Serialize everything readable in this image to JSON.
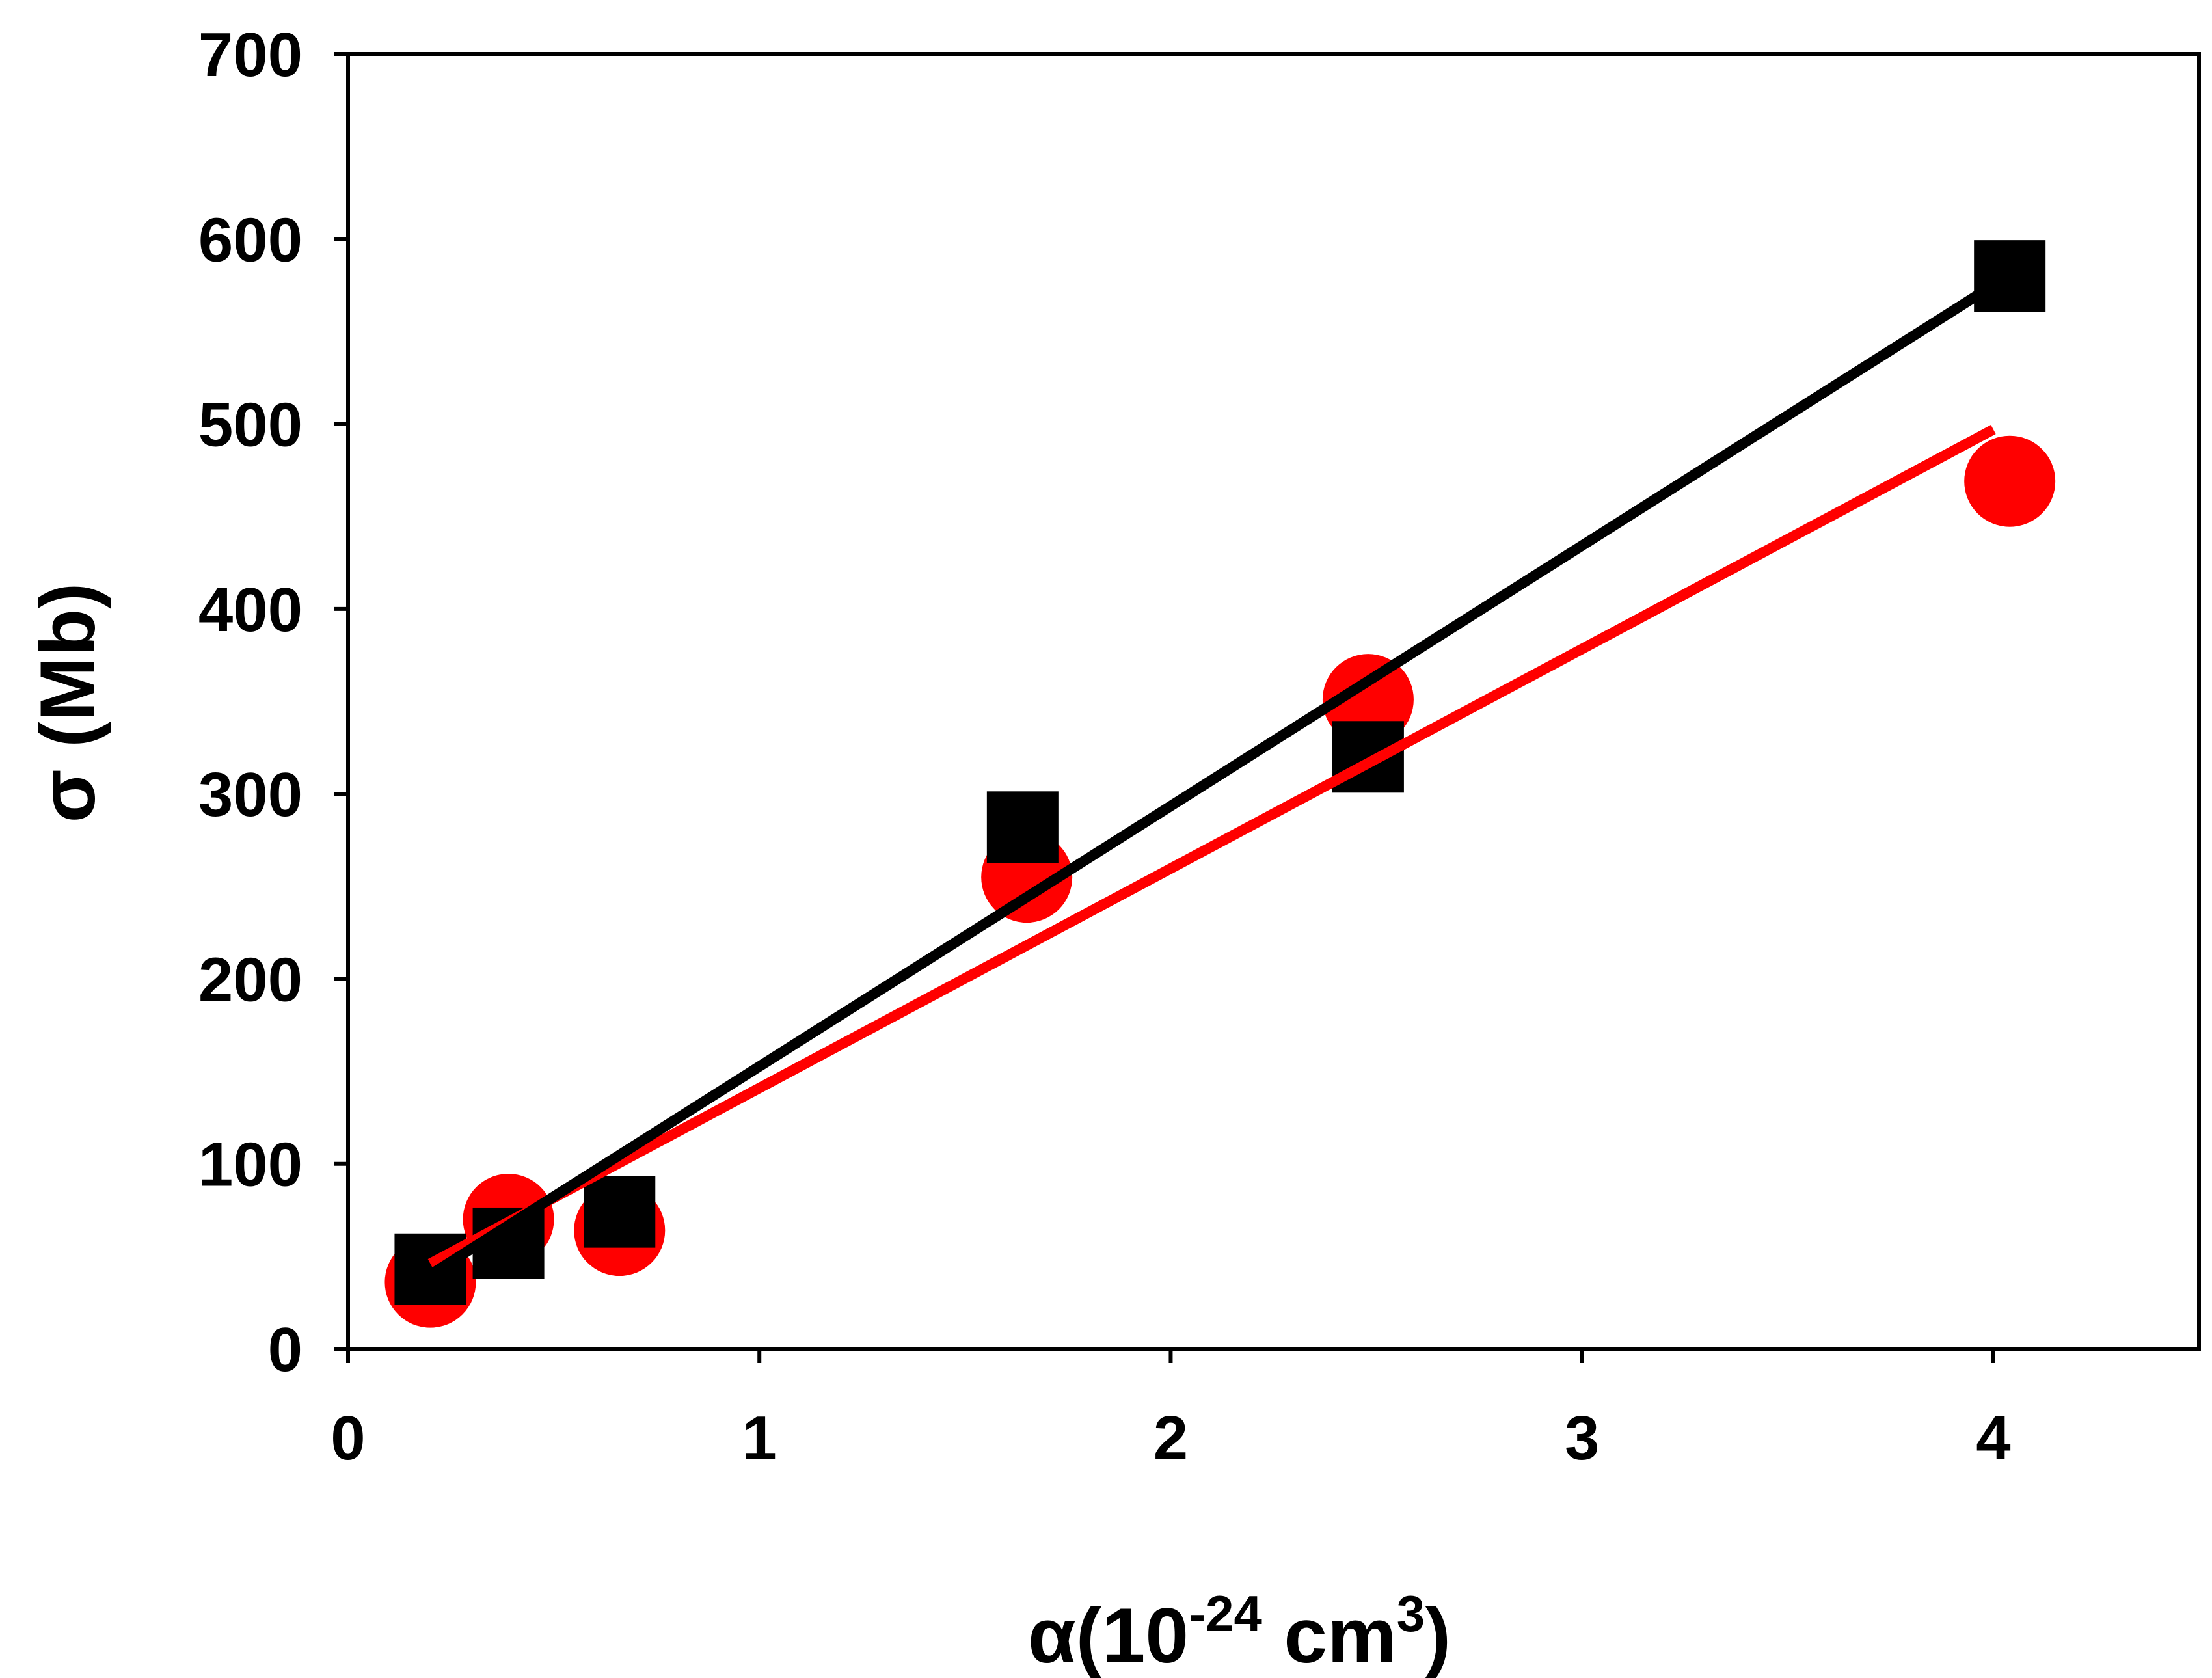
{
  "chart_data": {
    "type": "scatter",
    "xlabel": {
      "base": "α(10",
      "sup1": "-24",
      "mid": " cm",
      "sup2": "3",
      "end": ")"
    },
    "ylabel": "σ (Mb)",
    "xlim": [
      0,
      4.5
    ],
    "ylim": [
      0,
      700
    ],
    "xticks": [
      0,
      1,
      2,
      3,
      4
    ],
    "yticks": [
      0,
      100,
      200,
      300,
      400,
      500,
      600,
      700
    ],
    "xtick_labels": [
      "0",
      "1",
      "2",
      "3",
      "4"
    ],
    "ytick_labels": [
      "0",
      "100",
      "200",
      "300",
      "400",
      "500",
      "600",
      "700"
    ],
    "grid": false,
    "legend": "none",
    "series": [
      {
        "marker": "circle",
        "color": "#ff0000",
        "points": [
          [
            0.2,
            36
          ],
          [
            0.39,
            70
          ],
          [
            0.66,
            64
          ],
          [
            1.65,
            255
          ],
          [
            2.48,
            351
          ],
          [
            4.04,
            469
          ]
        ],
        "fit_line": [
          [
            0.2,
            46
          ],
          [
            4.0,
            497
          ]
        ]
      },
      {
        "marker": "square",
        "color": "#000000",
        "points": [
          [
            0.2,
            43
          ],
          [
            0.39,
            57
          ],
          [
            0.66,
            74
          ],
          [
            1.64,
            282
          ],
          [
            2.48,
            320
          ],
          [
            4.04,
            580
          ]
        ],
        "fit_line": [
          [
            0.2,
            40
          ],
          [
            4.0,
            575
          ]
        ]
      }
    ]
  }
}
